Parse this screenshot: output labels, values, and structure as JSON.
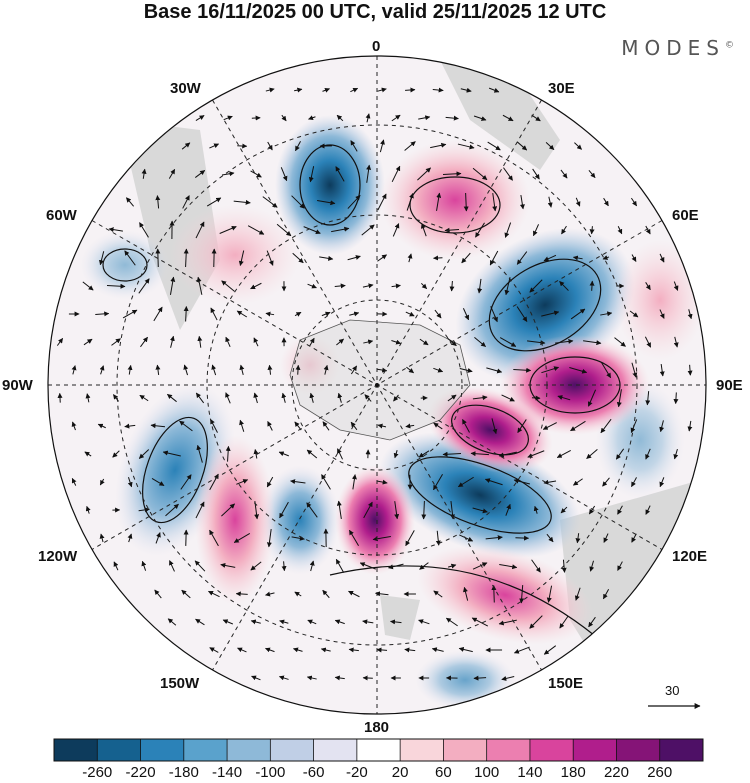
{
  "title": "Base 16/11/2025 00 UTC, valid 25/11/2025 12 UTC",
  "brand": "MODES",
  "brand_mark": "©",
  "map": {
    "projection": "polar stereographic (south pole)",
    "longitude_labels": {
      "top": "0",
      "top_left": "30W",
      "top_right": "30E",
      "upper_left": "60W",
      "upper_right": "60E",
      "left": "90W",
      "right": "90E",
      "lower_left": "120W",
      "lower_right": "120E",
      "bottom_left": "150W",
      "bottom_right": "150E",
      "bottom": "180"
    },
    "reference_vector": "30"
  },
  "colorbar": {
    "ticks": [
      "-260",
      "-220",
      "-180",
      "-140",
      "-100",
      "-60",
      "-20",
      "20",
      "60",
      "100",
      "140",
      "180",
      "220",
      "260"
    ],
    "colors": [
      "#0d3b5c",
      "#15618f",
      "#2b82b8",
      "#5aa2cc",
      "#8eb9d8",
      "#c0cfe6",
      "#e3e3f1",
      "#ffffff",
      "#f9d6db",
      "#f3aec1",
      "#ec7fb0",
      "#d9449d",
      "#b01e8c",
      "#851477",
      "#4e1066"
    ]
  },
  "colors": {
    "land": "#d9d9d9",
    "ocean": "#ffffff",
    "vector": "#111111"
  }
}
